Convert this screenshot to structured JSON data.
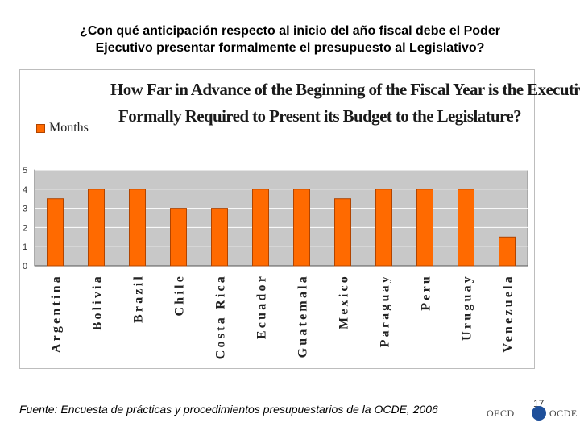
{
  "slide": {
    "title_line1": "¿Con qué anticipación respecto al inicio del año fiscal debe el Poder",
    "title_line2": "Ejecutivo presentar formalmente el presupuesto al Legislativo?",
    "footer": "Fuente: Encuesta de prácticas y procedimientos presupuestarios de la OCDE, 2006",
    "page_number": "17",
    "logo_left": "OECD",
    "logo_right": "OCDE"
  },
  "colors": {
    "bar_fill": "#ff6a00",
    "bar_stroke": "#b04400",
    "plot_bg": "#c8c8c8",
    "grid": "#ffffff"
  },
  "chart_data": {
    "type": "bar",
    "title_line1": "How Far in Advance of the Beginning of the Fiscal Year is the Executive",
    "title_line2": "Formally Required to Present its Budget to the Legislature?",
    "legend": [
      "Months"
    ],
    "legend_position": "top-left",
    "categories": [
      "Argentina",
      "Bolivia",
      "Brazil",
      "Chile",
      "Costa Rica",
      "Ecuador",
      "Guatemala",
      "Mexico",
      "Paraguay",
      "Peru",
      "Uruguay",
      "Venezuela"
    ],
    "series": [
      {
        "name": "Months",
        "values": [
          3.5,
          4,
          4,
          3,
          3,
          4,
          4,
          3.5,
          4,
          4,
          4,
          1.5
        ]
      }
    ],
    "ylim": [
      0,
      5
    ],
    "yticks": [
      "0",
      "1",
      "2",
      "3",
      "4",
      "5"
    ],
    "grid": true
  }
}
